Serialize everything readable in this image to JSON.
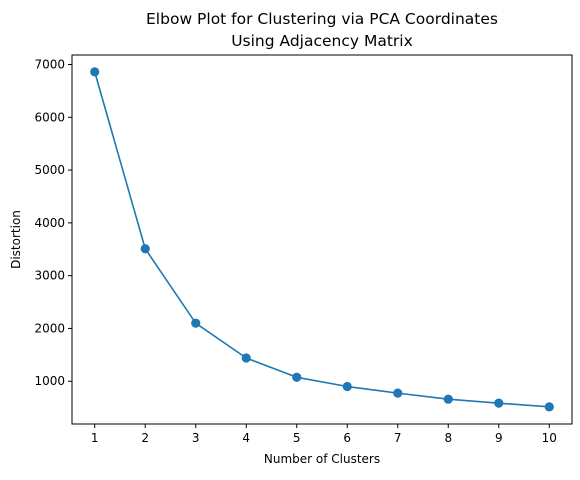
{
  "chart_data": {
    "type": "line",
    "title": {
      "line1": "Elbow Plot for Clustering via PCA Coordinates",
      "line2": "Using Adjacency Matrix"
    },
    "xlabel": "Number of Clusters",
    "ylabel": "Distortion",
    "x": [
      1,
      2,
      3,
      4,
      5,
      6,
      7,
      8,
      9,
      10
    ],
    "series": [
      {
        "values": [
          6860,
          3510,
          2100,
          1440,
          1075,
          900,
          775,
          660,
          585,
          515
        ]
      }
    ],
    "xlim": [
      0.55,
      10.45
    ],
    "ylim": [
      190,
      7180
    ],
    "xticks": [
      1,
      2,
      3,
      4,
      5,
      6,
      7,
      8,
      9,
      10
    ],
    "yticks": [
      1000,
      2000,
      3000,
      4000,
      5000,
      6000,
      7000
    ],
    "grid": false,
    "marker": "circle",
    "colors": {
      "series": "#1f77b4",
      "axes": "#000000",
      "background": "#ffffff"
    }
  }
}
